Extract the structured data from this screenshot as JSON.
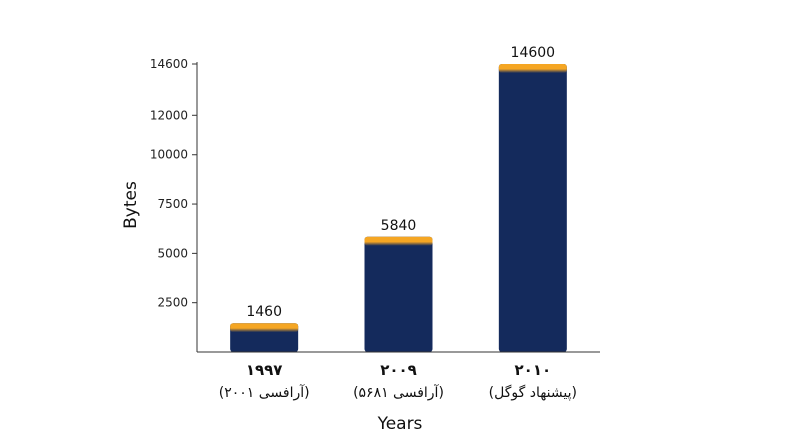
{
  "chart_data": {
    "type": "bar",
    "title": "",
    "xlabel": "Years",
    "ylabel": "Bytes",
    "categories": [
      {
        "year": "۱۹۹۷",
        "note": "(آرافسی ۲۰۰۱)"
      },
      {
        "year": "۲۰۰۹",
        "note": "(آرافسی ۵۶۸۱)"
      },
      {
        "year": "۲۰۱۰",
        "note": "(پیشنهاد گوگل)"
      }
    ],
    "values": [
      1460,
      5840,
      14600
    ],
    "data_labels": [
      "1460",
      "5840",
      "14600"
    ],
    "yticks": [
      2500,
      5000,
      7500,
      10000,
      12000,
      14600
    ],
    "ylim": [
      0,
      14600
    ],
    "grid": false,
    "legend": "none",
    "colors": {
      "bar": "#142a5c",
      "bar_cap": "#f5a623",
      "axis": "#333333"
    }
  }
}
